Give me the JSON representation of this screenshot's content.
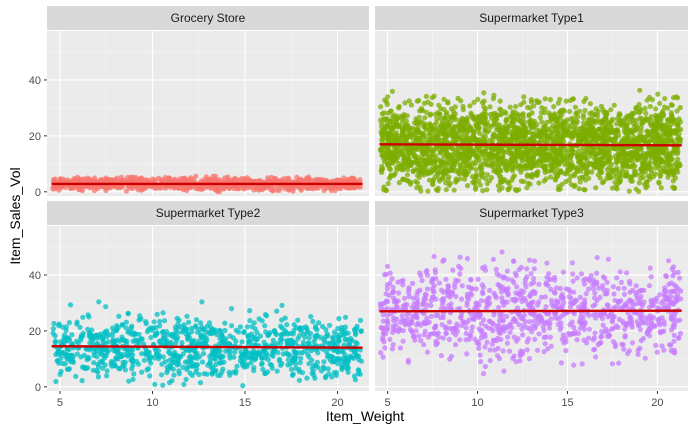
{
  "chart_data": {
    "type": "scatter",
    "facet_layout": "2x2",
    "xlabel": "Item_Weight",
    "ylabel": "Item_Sales_Vol",
    "xlim": [
      4.3,
      21.7
    ],
    "ylim": [
      -1.5,
      57.5
    ],
    "x_ticks": [
      5,
      10,
      15,
      20
    ],
    "y_ticks": [
      0,
      20,
      40
    ],
    "grid": true,
    "legend": "none",
    "background": "#ebebeb",
    "strip_background": "#d9d9d9",
    "trend_line_color": "#cc0000",
    "panels": [
      {
        "name": "Grocery Store",
        "color": "#f8766d",
        "n_points": 950,
        "points_y_range": [
          0,
          7.5
        ],
        "trend": {
          "x": [
            4.55,
            21.35
          ],
          "y": [
            2.8,
            2.8
          ]
        }
      },
      {
        "name": "Supermarket Type1",
        "color": "#7cae00",
        "n_points": 2600,
        "points_y_range": [
          0,
          50
        ],
        "trend": {
          "x": [
            4.55,
            21.35
          ],
          "y": [
            17.0,
            16.6
          ]
        }
      },
      {
        "name": "Supermarket Type2",
        "color": "#00bfc4",
        "n_points": 1000,
        "points_y_range": [
          0,
          39
        ],
        "trend": {
          "x": [
            4.55,
            21.35
          ],
          "y": [
            14.5,
            14.0
          ]
        }
      },
      {
        "name": "Supermarket Type3",
        "color": "#c77cff",
        "n_points": 1000,
        "points_y_range": [
          1,
          57
        ],
        "trend": {
          "x": [
            4.55,
            21.35
          ],
          "y": [
            27.0,
            27.2
          ]
        }
      }
    ]
  }
}
